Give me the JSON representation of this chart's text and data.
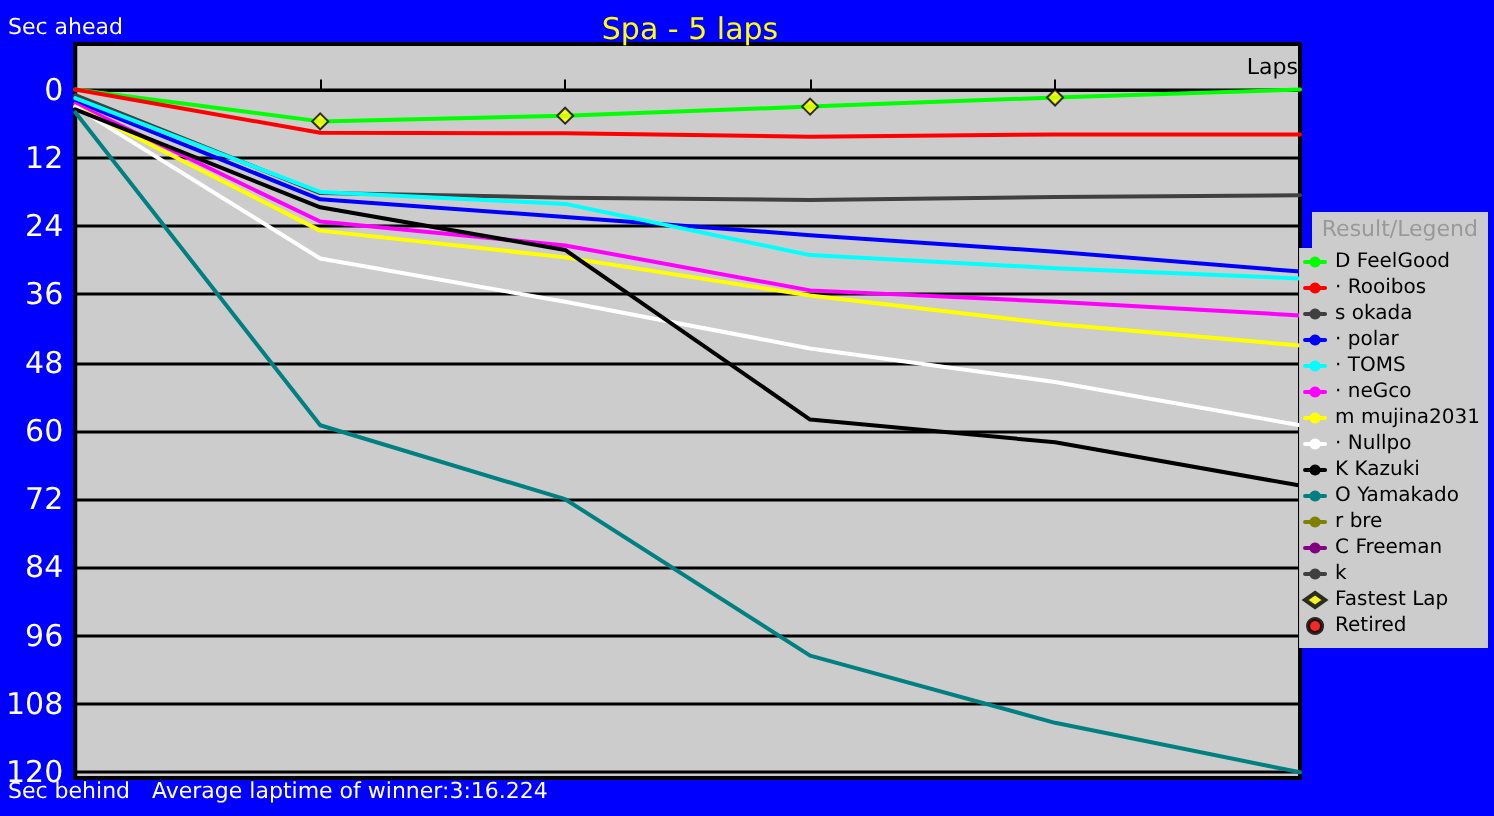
{
  "chart_data": {
    "type": "line",
    "title": "Spa - 5 laps",
    "xlabel": "Laps",
    "legend_title": "Result/Legend",
    "annotations": [
      "Sec ahead",
      "Sec behind",
      "Average laptime of winner:3:16.224"
    ],
    "categories": [
      null,
      null,
      null,
      null,
      null,
      null
    ],
    "ylim": [
      121,
      -8
    ],
    "yticks": [
      0,
      12,
      24,
      36,
      48,
      60,
      72,
      84,
      96,
      108,
      120
    ],
    "grid": "y",
    "legend": "right",
    "tick_labels": "y",
    "marker": "none",
    "line_style": "solid",
    "series": [
      {
        "name": "D FeelGood",
        "color": "#00ff00",
        "values": [
          0,
          5.6,
          4.6,
          3.0,
          1.4,
          0
        ]
      },
      {
        "name": "· Rooibos",
        "color": "#ff0000",
        "values": [
          0,
          7.6,
          7.7,
          8.3,
          7.9,
          7.9
        ]
      },
      {
        "name": "s okada",
        "color": "#404040",
        "values": [
          1,
          18.2,
          19.0,
          19.4,
          18.9,
          18.6
        ]
      },
      {
        "name": "· polar",
        "color": "#0000ff",
        "values": [
          2,
          19.3,
          22.4,
          25.6,
          28.5,
          32.0
        ]
      },
      {
        "name": "· TOMS",
        "color": "#00ffff",
        "values": [
          1.5,
          18.0,
          20.1,
          29.1,
          31.4,
          33.2
        ]
      },
      {
        "name": "· neGco",
        "color": "#ff00ff",
        "values": [
          2.5,
          23.2,
          27.4,
          35.3,
          37.3,
          39.7
        ]
      },
      {
        "name": "m mujina2031",
        "color": "#ffff00",
        "values": [
          3,
          24.8,
          29.5,
          36.2,
          41.2,
          45.0
        ]
      },
      {
        "name": "· Nullpo",
        "color": "#ffffff",
        "values": [
          3,
          29.7,
          37.3,
          45.5,
          51.4,
          59.0
        ]
      },
      {
        "name": "K Kazuki",
        "color": "#000000",
        "values": [
          3.5,
          20.7,
          28.2,
          58.0,
          62.0,
          69.6
        ]
      },
      {
        "name": "O Yamakado",
        "color": "#008080",
        "values": [
          4,
          59.0,
          72.0,
          99.5,
          111.3,
          120
        ]
      },
      {
        "name": "r bre",
        "color": "#808000",
        "values": [
          null,
          null,
          null,
          null,
          null,
          null
        ]
      },
      {
        "name": "C Freeman",
        "color": "#800080",
        "values": [
          null,
          null,
          null,
          null,
          null,
          null
        ]
      },
      {
        "name": "k",
        "color": "#404040",
        "values": [
          null,
          null,
          null,
          null,
          null,
          null
        ]
      },
      {
        "name": "Fastest Lap",
        "type": "scatter",
        "marker": "diamond",
        "color": "#ffff00",
        "values": [
          null,
          5.6,
          4.6,
          3.0,
          1.4,
          null
        ]
      },
      {
        "name": "Retired",
        "type": "scatter",
        "marker": "circle",
        "color": "#ff0000",
        "values": [
          null,
          null,
          null,
          null,
          null,
          null
        ]
      }
    ]
  }
}
